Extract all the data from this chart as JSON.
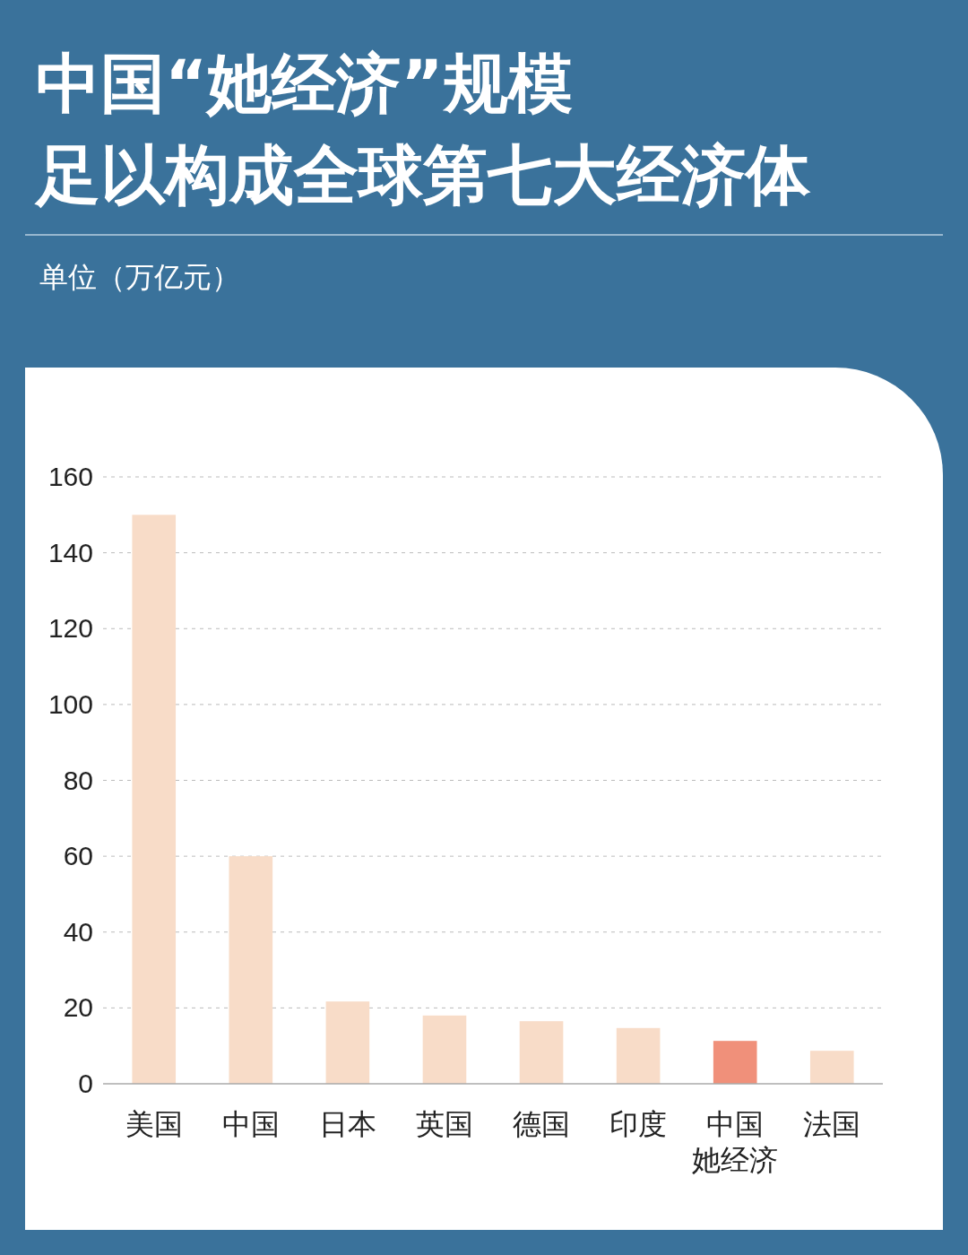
{
  "chart_data": {
    "type": "bar",
    "title": "中国“她经济”规模足以构成全球第七大经济体",
    "subtitle": "单位（万亿元）",
    "categories": [
      "美国",
      "中国",
      "日本",
      "英国",
      "德国",
      "印度",
      "中国她经济",
      "法国"
    ],
    "values": [
      150,
      60,
      21.7,
      18,
      16.5,
      14.7,
      11.3,
      8.7
    ],
    "colors": [
      "#f8dcc8",
      "#f8dcc8",
      "#f8dcc8",
      "#f8dcc8",
      "#f8dcc8",
      "#f8dcc8",
      "#f0907a",
      "#f8dcc8"
    ],
    "ylim": [
      0,
      160
    ],
    "yticks": [
      0,
      20,
      40,
      60,
      80,
      100,
      120,
      140,
      160
    ],
    "grid": "y"
  }
}
